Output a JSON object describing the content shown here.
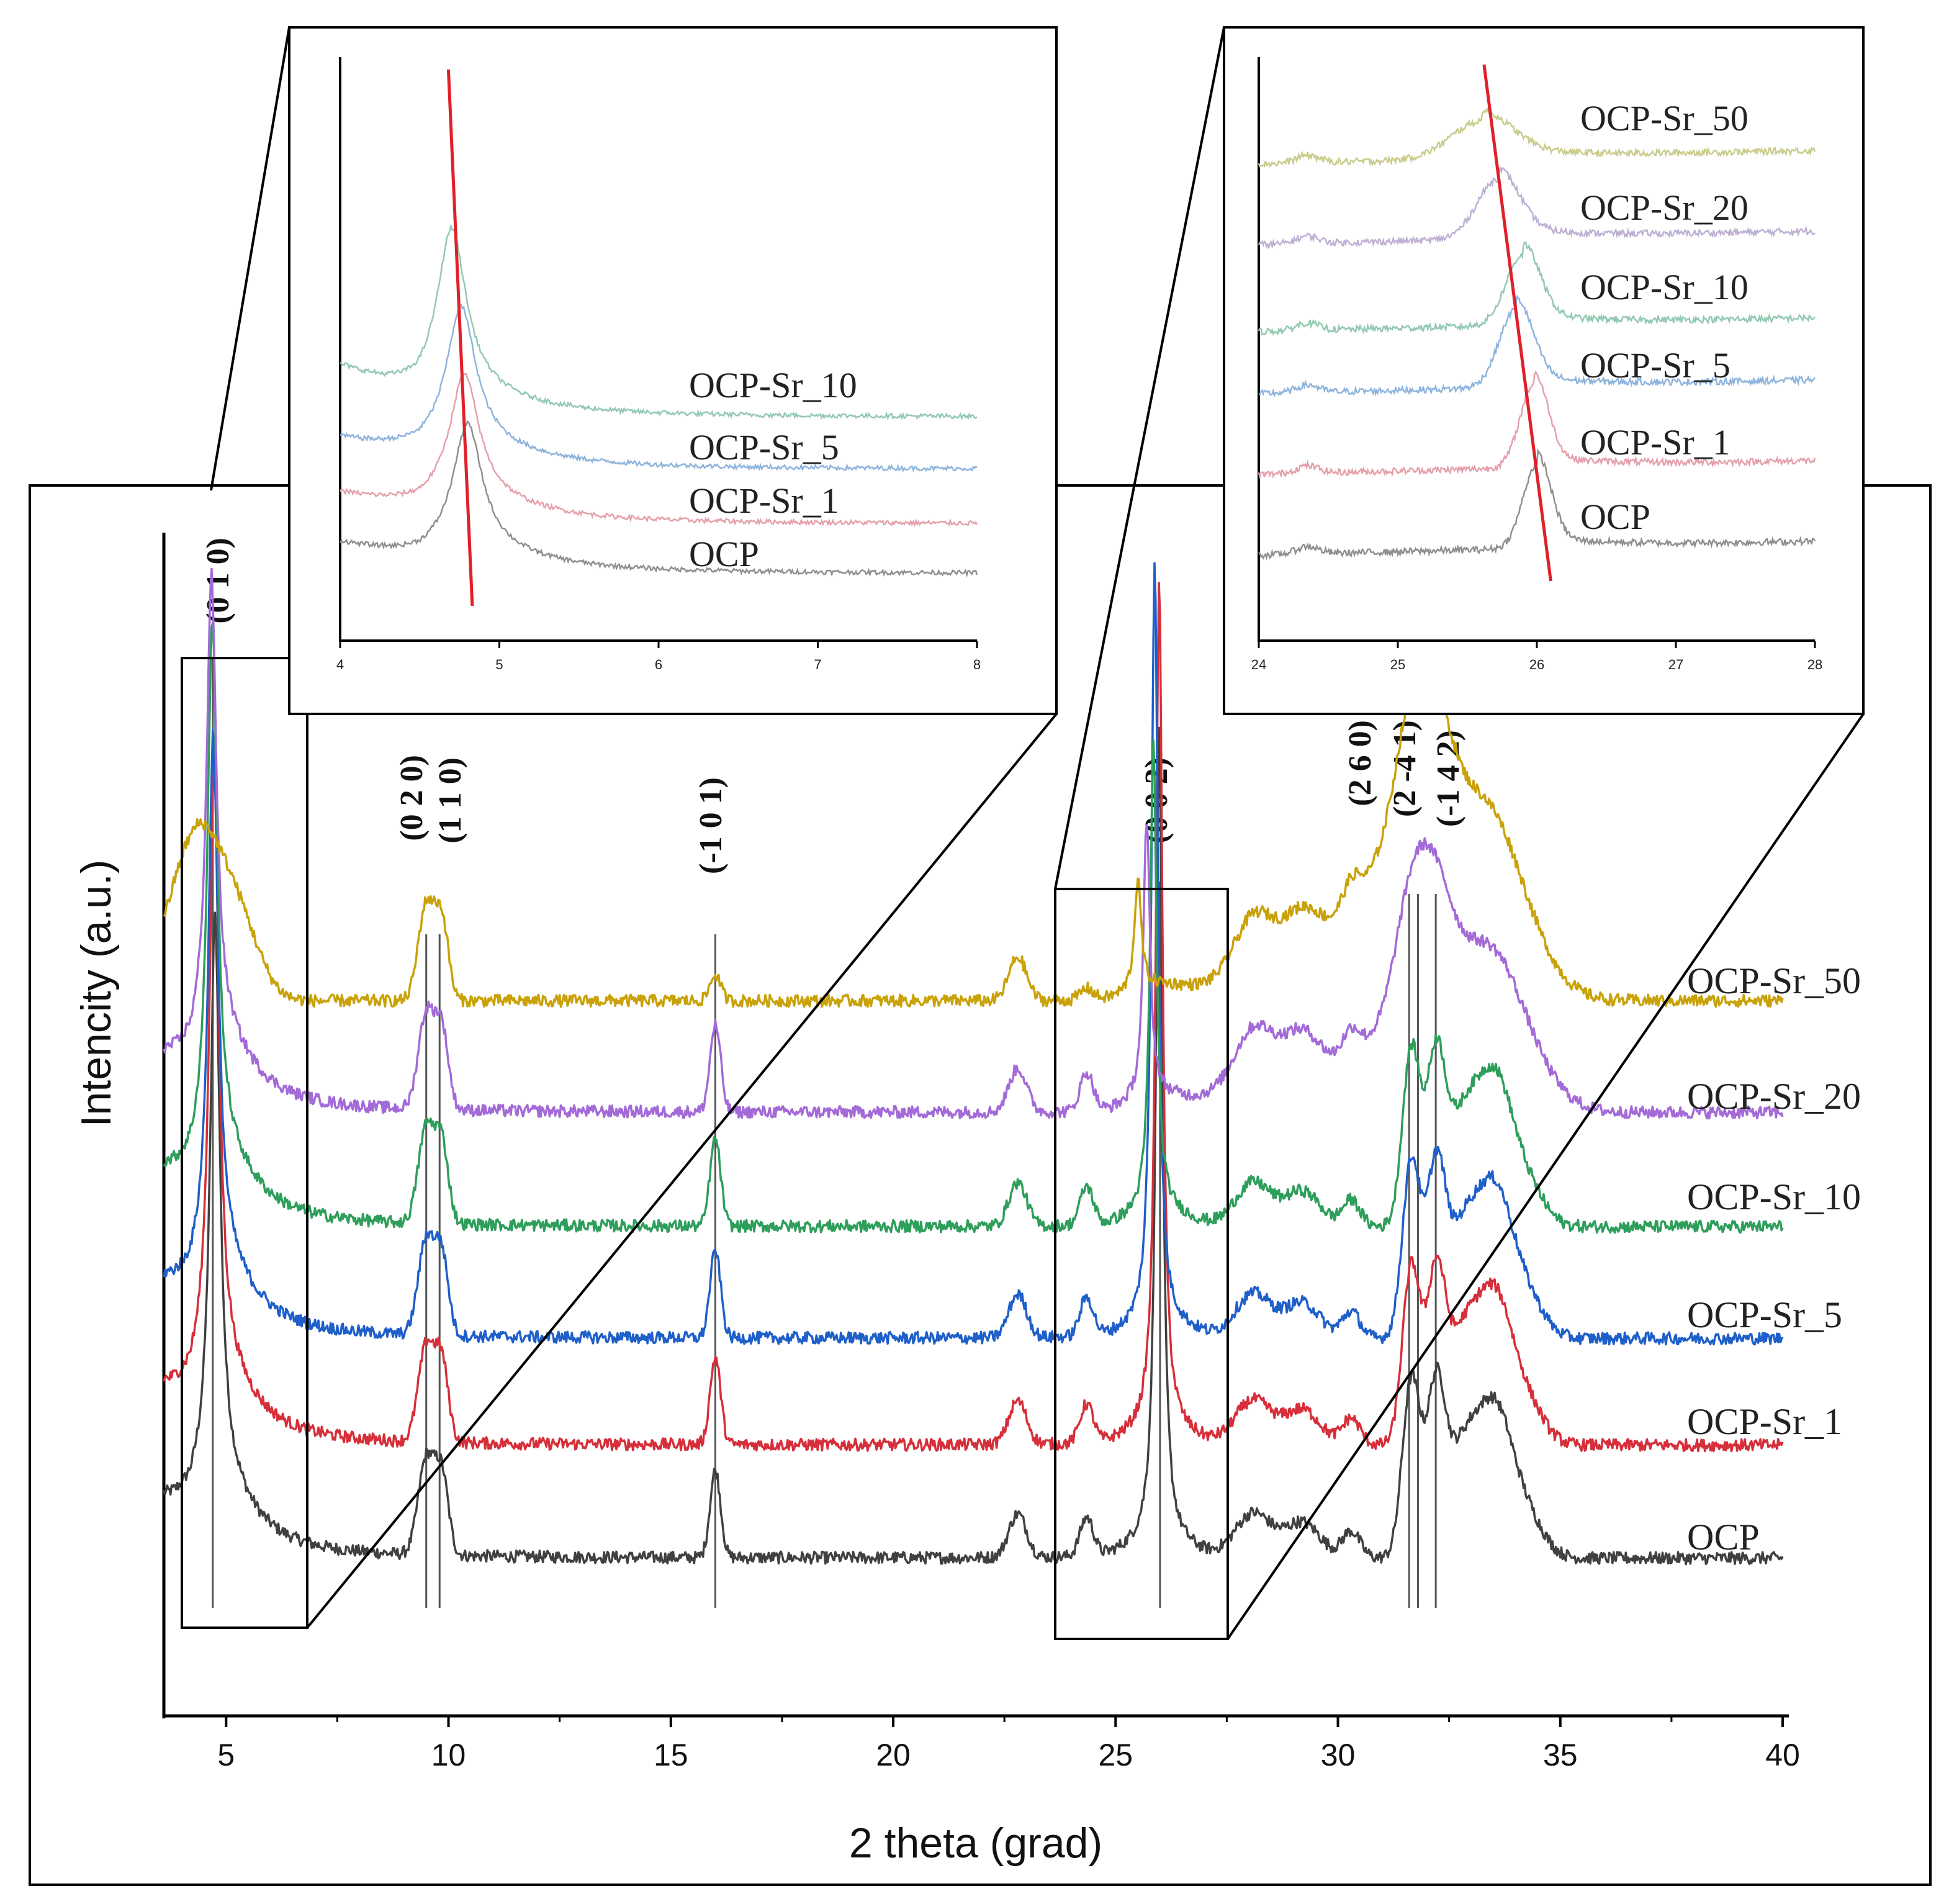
{
  "chart_data": [
    {
      "type": "line",
      "title": "",
      "xlabel": "2 theta (grad)",
      "ylabel": "Intencity (a.u.)",
      "xlim": [
        3.6,
        40
      ],
      "x_ticks": [
        5,
        10,
        15,
        20,
        25,
        30,
        35,
        40
      ],
      "x_tick_labels": [
        "5",
        "10",
        "15",
        "20",
        "25",
        "30",
        "35",
        "40"
      ],
      "y_ticks_shown": false,
      "grid": false,
      "series": [
        {
          "name": "OCP",
          "color": "#404040",
          "offset": 0
        },
        {
          "name": "OCP-Sr_1",
          "color": "#d62f3a",
          "offset": 1
        },
        {
          "name": "OCP-Sr_5",
          "color": "#1f5fc9",
          "offset": 2
        },
        {
          "name": "OCP-Sr_10",
          "color": "#2e9e5b",
          "offset": 3
        },
        {
          "name": "OCP-Sr_20",
          "color": "#a36ad8",
          "offset": 4
        },
        {
          "name": "OCP-Sr_50",
          "color": "#c9a20a",
          "offset": 5
        }
      ],
      "peaks": [
        {
          "label": "(0 1 0)",
          "x": 4.7
        },
        {
          "label": "(0 2 0)",
          "x": 9.5
        },
        {
          "label": "(1 1 0)",
          "x": 9.8
        },
        {
          "label": "(-1 0 1)",
          "x": 16.0
        },
        {
          "label": "(0 0 2)",
          "x": 26.0
        },
        {
          "label": "(2 6 0)",
          "x": 31.6
        },
        {
          "label": "(2 -4 1)",
          "x": 31.8
        },
        {
          "label": "(-1 4 2)",
          "x": 32.2
        }
      ],
      "zoom_regions": [
        {
          "xrange": [
            4,
            6.8
          ],
          "inset": "left"
        },
        {
          "xrange": [
            23.7,
            27.5
          ],
          "inset": "right"
        }
      ]
    },
    {
      "type": "line",
      "title": "",
      "xlabel": "",
      "ylabel": "",
      "xlim": [
        4,
        8
      ],
      "x_ticks": [
        4,
        5,
        6,
        7,
        8
      ],
      "x_tick_labels": [
        "4",
        "5",
        "6",
        "7",
        "8"
      ],
      "series": [
        {
          "name": "OCP",
          "color": "#8f8f8f",
          "peak_x": 4.8
        },
        {
          "name": "OCP-Sr_1",
          "color": "#e4a0aa",
          "peak_x": 4.78
        },
        {
          "name": "OCP-Sr_5",
          "color": "#8eb4dd",
          "peak_x": 4.76
        },
        {
          "name": "OCP-Sr_10",
          "color": "#93c9b1",
          "peak_x": 4.7
        }
      ],
      "trend_line": {
        "color": "#e0202a",
        "x_start": 4.68,
        "x_end": 4.83
      }
    },
    {
      "type": "line",
      "title": "",
      "xlabel": "",
      "ylabel": "",
      "xlim": [
        24,
        28
      ],
      "x_ticks": [
        24,
        25,
        26,
        27,
        28
      ],
      "x_tick_labels": [
        "24",
        "25",
        "26",
        "27",
        "28"
      ],
      "series": [
        {
          "name": "OCP",
          "color": "#8f8f8f",
          "peak_x": 26.0
        },
        {
          "name": "OCP-Sr_1",
          "color": "#e4a0aa",
          "peak_x": 25.98
        },
        {
          "name": "OCP-Sr_5",
          "color": "#8eb4dd",
          "peak_x": 25.85
        },
        {
          "name": "OCP-Sr_10",
          "color": "#93c9b1",
          "peak_x": 25.9
        },
        {
          "name": "OCP-Sr_20",
          "color": "#bdb0d3",
          "peak_x": 25.72
        },
        {
          "name": "OCP-Sr_50",
          "color": "#c9cc8c",
          "peak_x": 25.6
        }
      ],
      "trend_line": {
        "color": "#e0202a",
        "x_start": 25.62,
        "x_end": 26.1
      }
    }
  ]
}
